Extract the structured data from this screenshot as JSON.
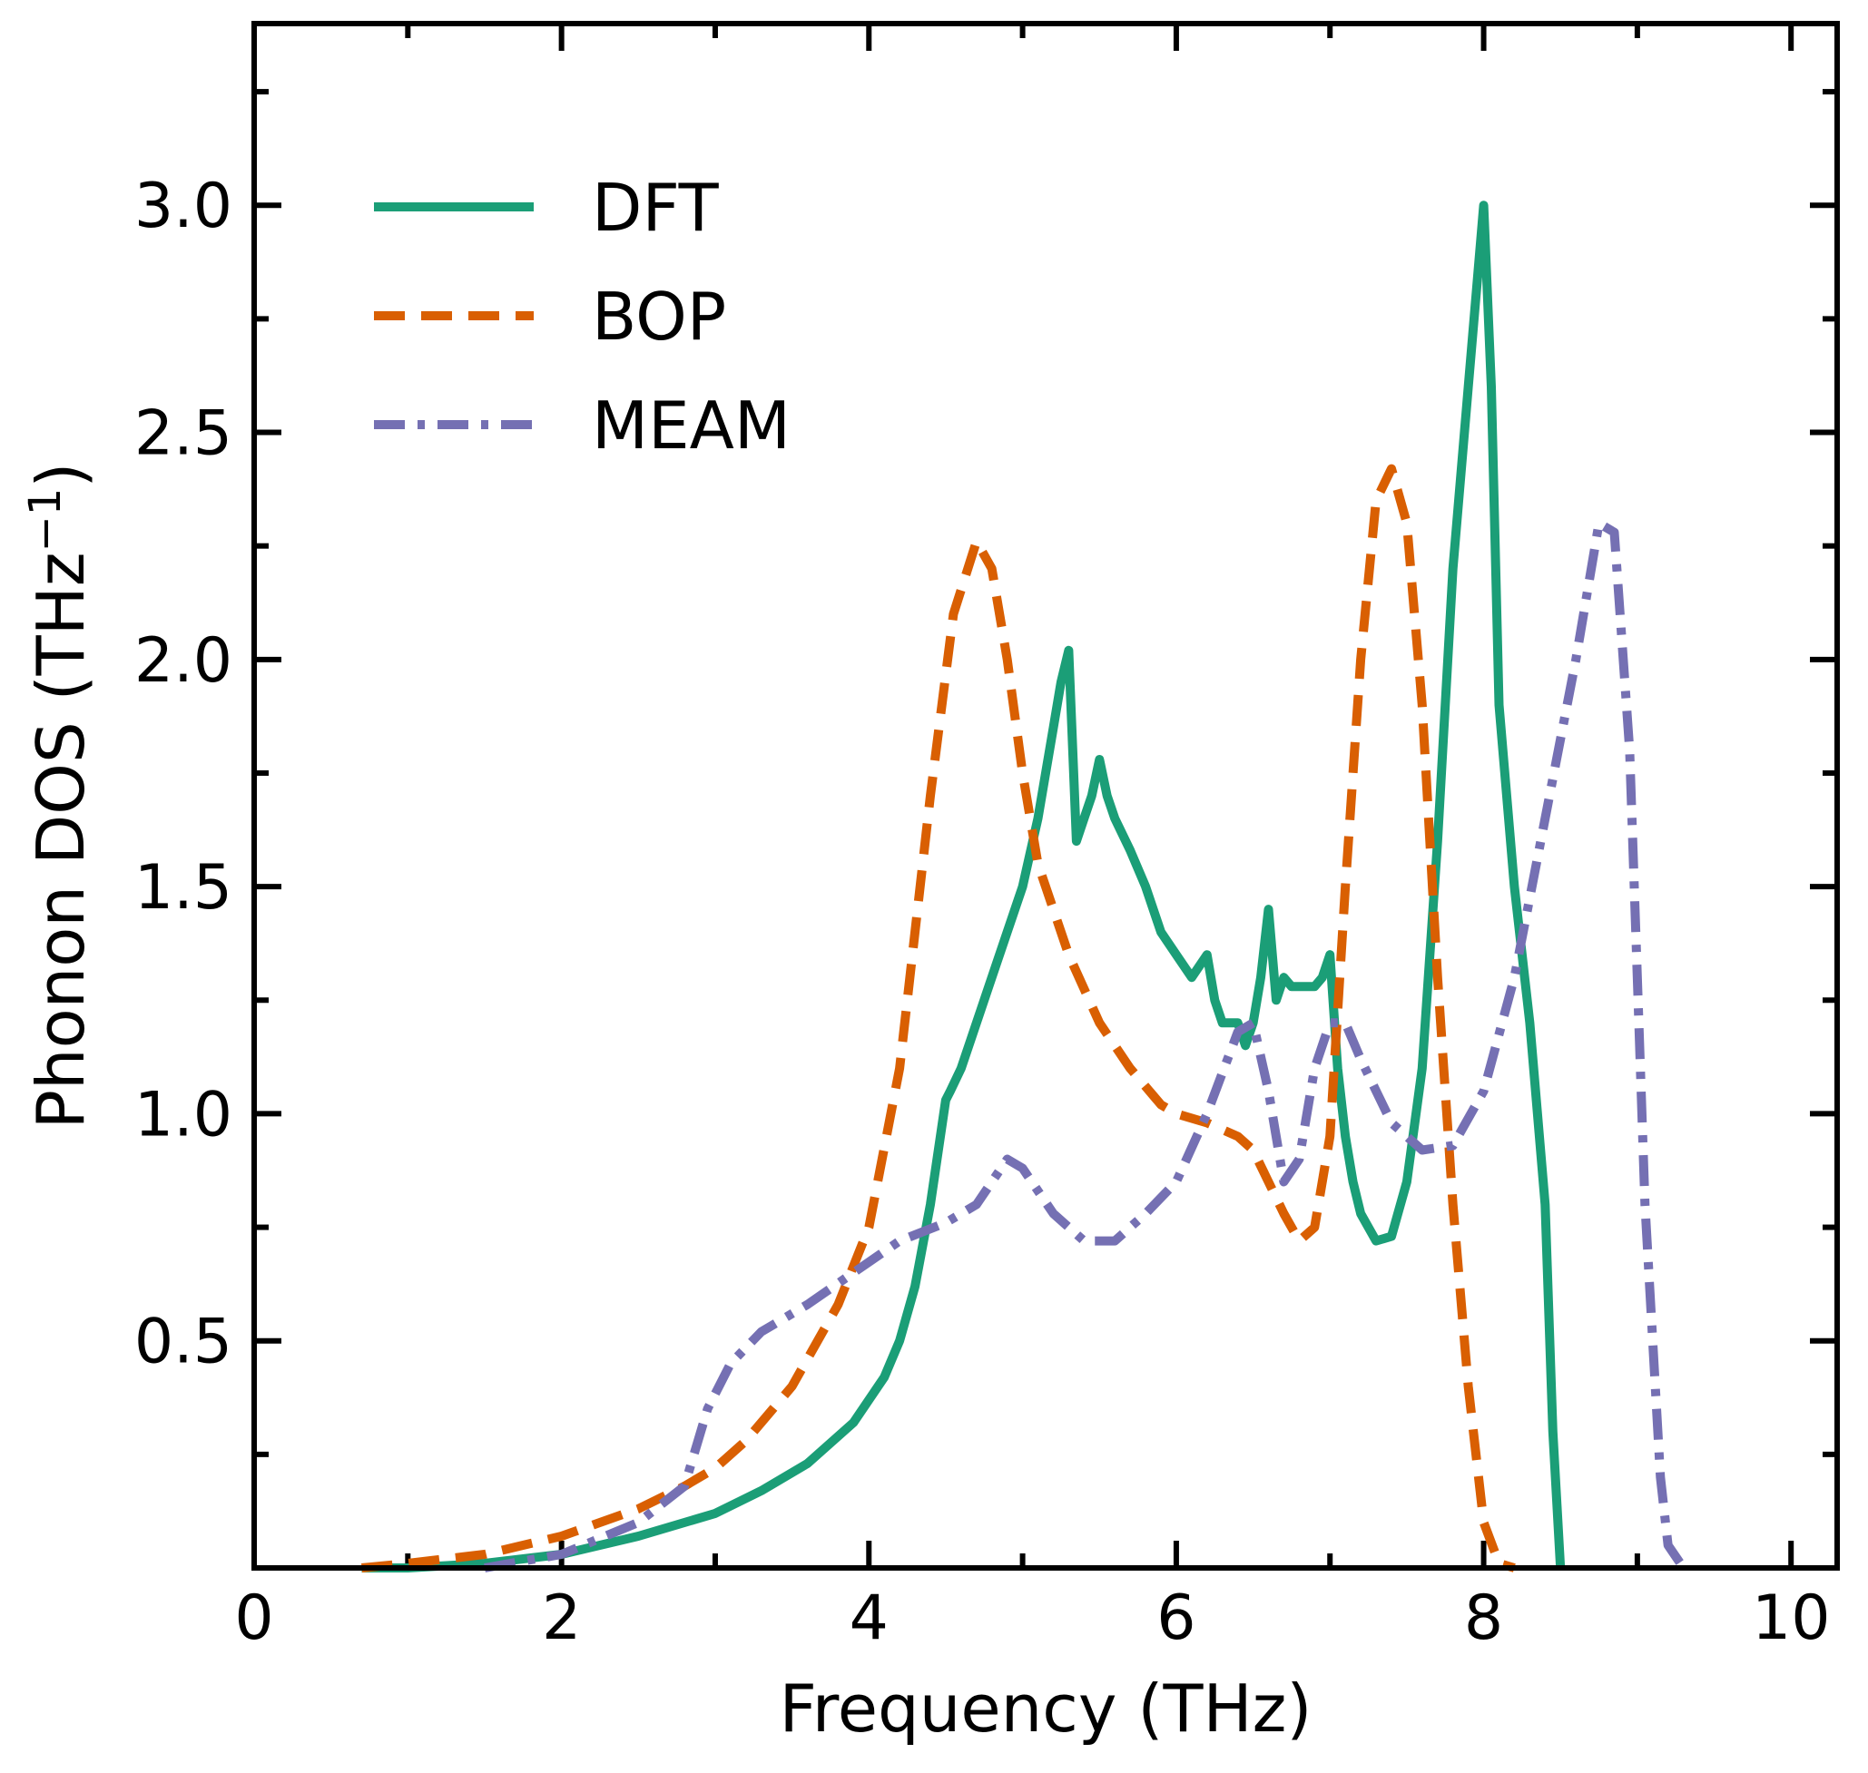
{
  "chart_data": {
    "type": "line",
    "title": "",
    "xlabel": "Frequency (THz)",
    "ylabel_prefix": "Phonon DOS (THz",
    "ylabel_sup": "−1",
    "ylabel_suffix": ")",
    "xlim": [
      0,
      10.3
    ],
    "ylim": [
      0,
      3.4
    ],
    "xticks": [
      0,
      2,
      4,
      6,
      8,
      10
    ],
    "xtick_labels": [
      "0",
      "2",
      "4",
      "6",
      "8",
      "10"
    ],
    "yticks": [
      0.5,
      1.0,
      1.5,
      2.0,
      2.5,
      3.0
    ],
    "ytick_labels": [
      "0.5",
      "1.0",
      "1.5",
      "2.0",
      "2.5",
      "3.0"
    ],
    "grid": false,
    "legend_position": "upper-left",
    "series": [
      {
        "name": "DFT",
        "color": "#1b9e77",
        "style": "solid",
        "x": [
          0.7,
          1.0,
          1.5,
          2.0,
          2.5,
          3.0,
          3.3,
          3.6,
          3.9,
          4.1,
          4.2,
          4.3,
          4.4,
          4.5,
          4.53,
          4.6,
          4.8,
          5.0,
          5.1,
          5.2,
          5.25,
          5.3,
          5.35,
          5.4,
          5.45,
          5.5,
          5.55,
          5.6,
          5.7,
          5.8,
          5.9,
          6.0,
          6.1,
          6.2,
          6.25,
          6.3,
          6.4,
          6.45,
          6.5,
          6.55,
          6.6,
          6.65,
          6.7,
          6.75,
          6.8,
          6.9,
          6.95,
          7.0,
          7.05,
          7.1,
          7.15,
          7.2,
          7.3,
          7.4,
          7.5,
          7.6,
          7.7,
          7.8,
          7.9,
          8.0,
          8.05,
          8.1,
          8.2,
          8.3,
          8.4,
          8.45,
          8.5
        ],
        "y": [
          0.0,
          0.0,
          0.01,
          0.03,
          0.07,
          0.12,
          0.17,
          0.23,
          0.32,
          0.42,
          0.5,
          0.62,
          0.8,
          1.03,
          1.05,
          1.1,
          1.3,
          1.5,
          1.65,
          1.85,
          1.95,
          2.02,
          1.6,
          1.65,
          1.7,
          1.78,
          1.7,
          1.65,
          1.58,
          1.5,
          1.4,
          1.35,
          1.3,
          1.35,
          1.25,
          1.2,
          1.2,
          1.15,
          1.2,
          1.3,
          1.45,
          1.25,
          1.3,
          1.28,
          1.28,
          1.28,
          1.3,
          1.35,
          1.1,
          0.95,
          0.85,
          0.78,
          0.72,
          0.73,
          0.85,
          1.1,
          1.6,
          2.2,
          2.6,
          3.0,
          2.6,
          1.9,
          1.5,
          1.2,
          0.8,
          0.3,
          0.0
        ]
      },
      {
        "name": "BOP",
        "color": "#d95f02",
        "style": "dashed",
        "x": [
          0.7,
          1.0,
          1.5,
          2.0,
          2.5,
          2.8,
          3.0,
          3.2,
          3.5,
          3.8,
          4.0,
          4.2,
          4.4,
          4.55,
          4.7,
          4.8,
          4.9,
          5.0,
          5.1,
          5.3,
          5.5,
          5.7,
          5.9,
          6.0,
          6.2,
          6.4,
          6.5,
          6.6,
          6.7,
          6.8,
          6.9,
          7.0,
          7.1,
          7.2,
          7.3,
          7.4,
          7.5,
          7.6,
          7.7,
          7.8,
          7.9,
          8.0,
          8.1,
          8.2
        ],
        "y": [
          0.0,
          0.01,
          0.03,
          0.07,
          0.13,
          0.18,
          0.22,
          0.28,
          0.4,
          0.58,
          0.75,
          1.1,
          1.7,
          2.1,
          2.26,
          2.2,
          2.0,
          1.75,
          1.55,
          1.35,
          1.2,
          1.1,
          1.02,
          1.0,
          0.98,
          0.95,
          0.92,
          0.85,
          0.78,
          0.72,
          0.75,
          0.95,
          1.5,
          2.0,
          2.35,
          2.42,
          2.3,
          1.9,
          1.3,
          0.8,
          0.4,
          0.1,
          0.01,
          0.0
        ]
      },
      {
        "name": "MEAM",
        "color": "#7570b3",
        "style": "dashdot",
        "x": [
          1.5,
          2.0,
          2.5,
          2.8,
          2.95,
          3.1,
          3.3,
          3.6,
          3.9,
          4.2,
          4.5,
          4.7,
          4.9,
          5.0,
          5.2,
          5.4,
          5.6,
          5.8,
          6.0,
          6.2,
          6.4,
          6.5,
          6.6,
          6.7,
          6.8,
          6.9,
          7.0,
          7.1,
          7.2,
          7.4,
          7.6,
          7.8,
          8.0,
          8.2,
          8.4,
          8.6,
          8.75,
          8.85,
          8.95,
          9.05,
          9.15,
          9.2,
          9.3
        ],
        "y": [
          0.0,
          0.03,
          0.1,
          0.18,
          0.35,
          0.45,
          0.52,
          0.58,
          0.65,
          0.72,
          0.76,
          0.8,
          0.9,
          0.88,
          0.78,
          0.72,
          0.72,
          0.78,
          0.85,
          1.0,
          1.18,
          1.2,
          1.05,
          0.85,
          0.9,
          1.1,
          1.2,
          1.2,
          1.12,
          0.98,
          0.92,
          0.93,
          1.05,
          1.3,
          1.65,
          2.0,
          2.3,
          2.28,
          1.8,
          0.8,
          0.2,
          0.05,
          0.0
        ]
      }
    ]
  }
}
